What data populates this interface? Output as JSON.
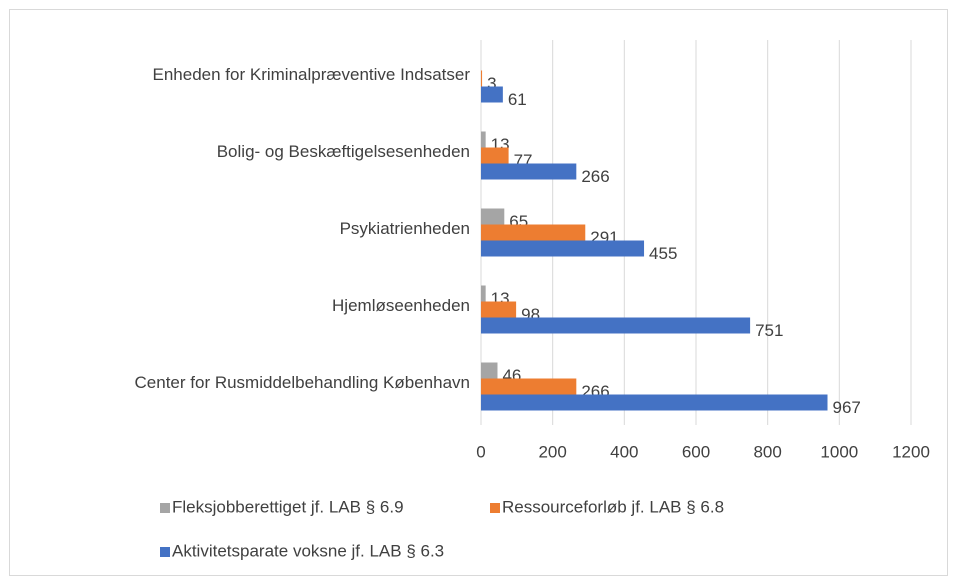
{
  "chart_data": {
    "type": "barh",
    "categories": [
      "Enheden for Kriminalpræventive Indsatser",
      "Bolig- og Beskæftigelsesenheden",
      "Psykiatrienheden",
      "Hjemløseenheden",
      "Center for Rusmiddelbehandling København"
    ],
    "series": [
      {
        "name": "Fleksjobberettiget jf. LAB § 6.9",
        "color": "#a5a5a5",
        "values": [
          null,
          13,
          65,
          13,
          46
        ]
      },
      {
        "name": "Ressourceforløb jf. LAB § 6.8",
        "color": "#ed7d31",
        "values": [
          3,
          77,
          291,
          98,
          266
        ]
      },
      {
        "name": "Aktivitetsparate voksne jf. LAB § 6.3",
        "color": "#4472c4",
        "values": [
          61,
          266,
          455,
          751,
          967
        ]
      }
    ],
    "xlim": [
      0,
      1200
    ],
    "xticks": [
      0,
      200,
      400,
      600,
      800,
      1000,
      1200
    ],
    "grid": true,
    "legend": "bottom"
  }
}
